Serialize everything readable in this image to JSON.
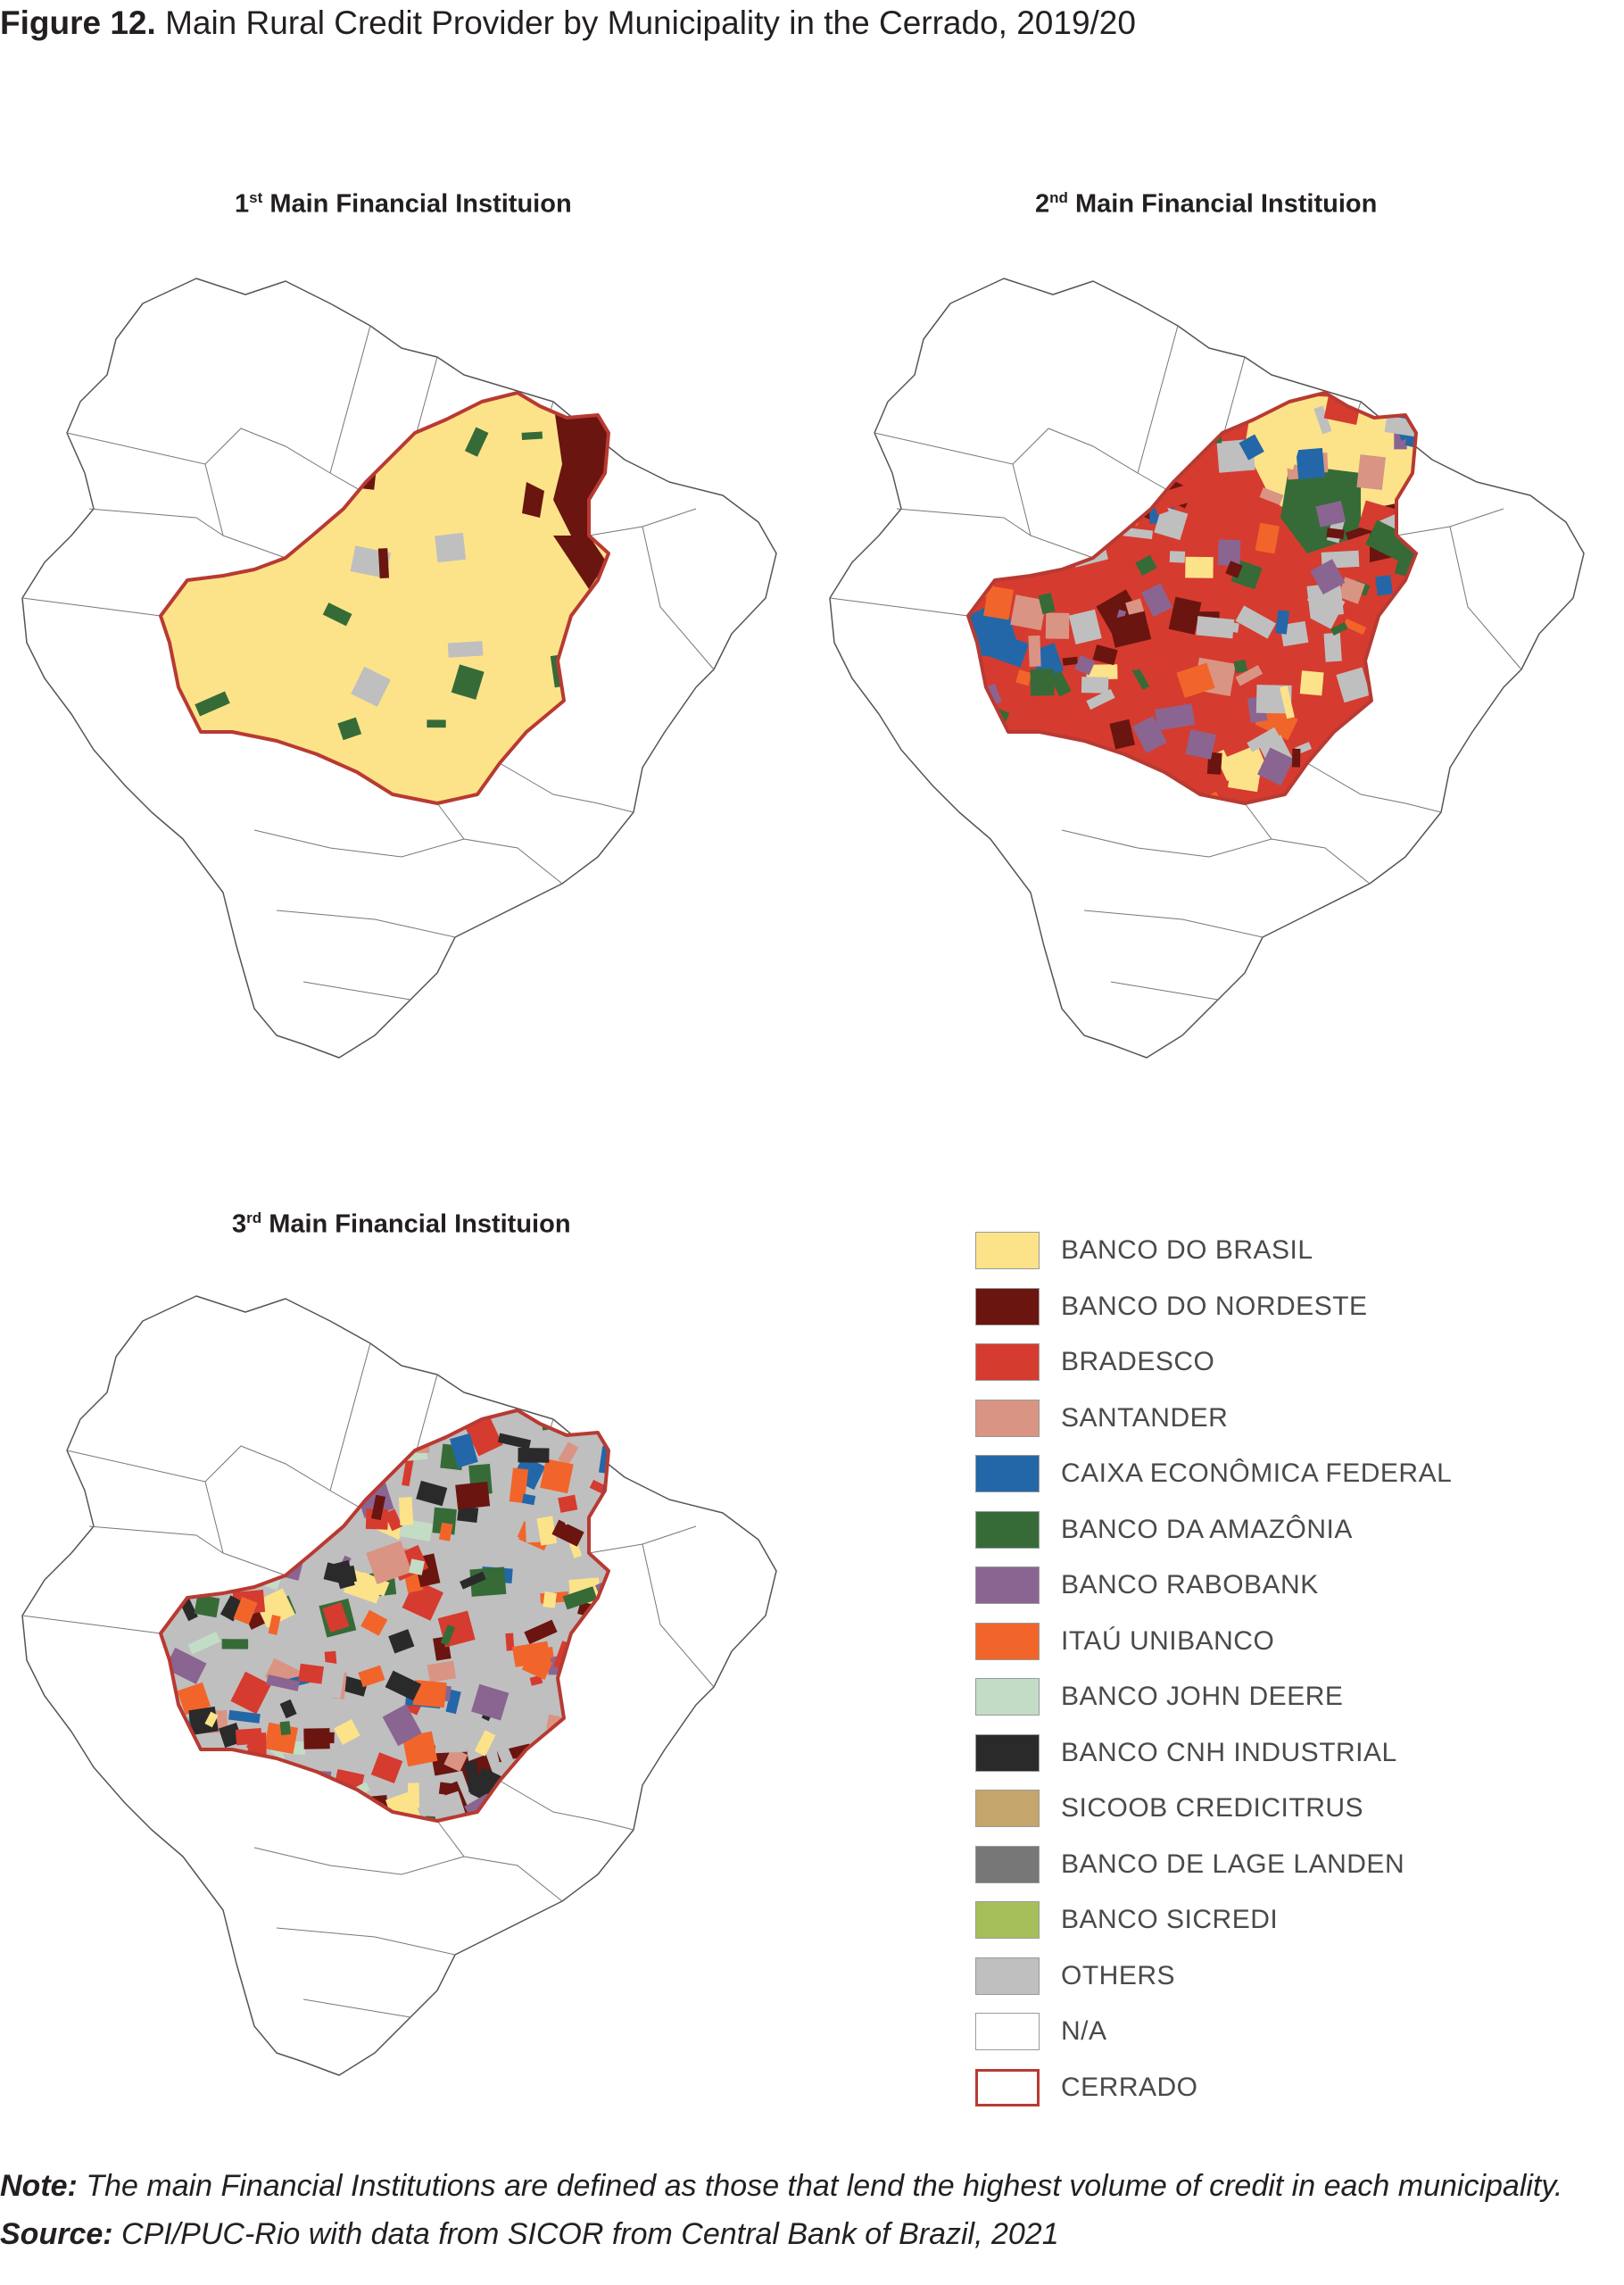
{
  "figure": {
    "number": "Figure 12.",
    "title": "Main Rural Credit Provider by Municipality in the Cerrado, 2019/20"
  },
  "maps": [
    {
      "ordinal_num": "1",
      "ordinal_sup": "st",
      "title_rest": " Main Financial Instituion"
    },
    {
      "ordinal_num": "2",
      "ordinal_sup": "nd",
      "title_rest": " Main Financial Instituion"
    },
    {
      "ordinal_num": "3",
      "ordinal_sup": "rd",
      "title_rest": " Main Financial Instituion"
    }
  ],
  "legend": {
    "items": [
      {
        "label": "BANCO DO BRASIL",
        "color": "#fce38a"
      },
      {
        "label": "BANCO DO NORDESTE",
        "color": "#6a1510"
      },
      {
        "label": "BRADESCO",
        "color": "#d63b2f"
      },
      {
        "label": "SANTANDER",
        "color": "#d99484"
      },
      {
        "label": "CAIXA ECONÔMICA FEDERAL",
        "color": "#2467a8"
      },
      {
        "label": "BANCO DA AMAZÔNIA",
        "color": "#366b38"
      },
      {
        "label": "BANCO RABOBANK",
        "color": "#8a6591"
      },
      {
        "label": "ITAÚ UNIBANCO",
        "color": "#f2652a"
      },
      {
        "label": "BANCO JOHN DEERE",
        "color": "#c3dcc6"
      },
      {
        "label": "BANCO CNH INDUSTRIAL",
        "color": "#2a2a2a"
      },
      {
        "label": "SICOOB CREDICITRUS",
        "color": "#c4a56b"
      },
      {
        "label": "BANCO DE LAGE LANDEN",
        "color": "#777777"
      },
      {
        "label": "BANCO SICREDI",
        "color": "#a6bf5a"
      },
      {
        "label": "OTHERS",
        "color": "#bfbfbf"
      },
      {
        "label": "N/A",
        "color": "#ffffff"
      },
      {
        "label": "CERRADO",
        "color": "#ffffff",
        "border": "#b83a32"
      }
    ]
  },
  "note": {
    "label": "Note:",
    "text": " The main Financial Institutions are defined as those that lend the highest volume of credit in each municipality."
  },
  "source": {
    "label": "Source:",
    "text": " CPI/PUC-Rio with data from SICOR from Central Bank of Brazil, 2021"
  }
}
